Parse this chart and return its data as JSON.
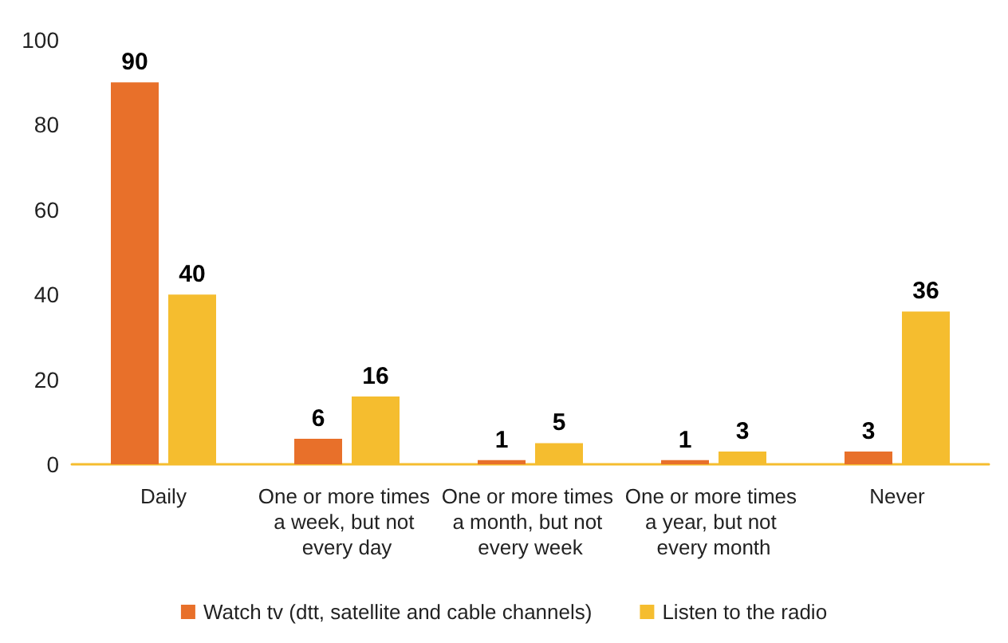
{
  "chart_data": {
    "type": "bar",
    "categories": [
      "Daily",
      "One or more times a week, but not every day",
      "One or more times a month, but not every week",
      "One or more times a year, but not every month",
      "Never"
    ],
    "series": [
      {
        "name": "Watch tv (dtt, satellite and cable channels)",
        "color": "#e8702a",
        "values": [
          90,
          6,
          1,
          1,
          3
        ]
      },
      {
        "name": "Listen to the radio",
        "color": "#f5bd2f",
        "values": [
          40,
          16,
          5,
          3,
          36
        ]
      }
    ],
    "ylim": [
      0,
      100
    ],
    "yticks": [
      0,
      20,
      40,
      60,
      80,
      100
    ],
    "grid": false,
    "legend": "bottom",
    "data_labels": true
  }
}
